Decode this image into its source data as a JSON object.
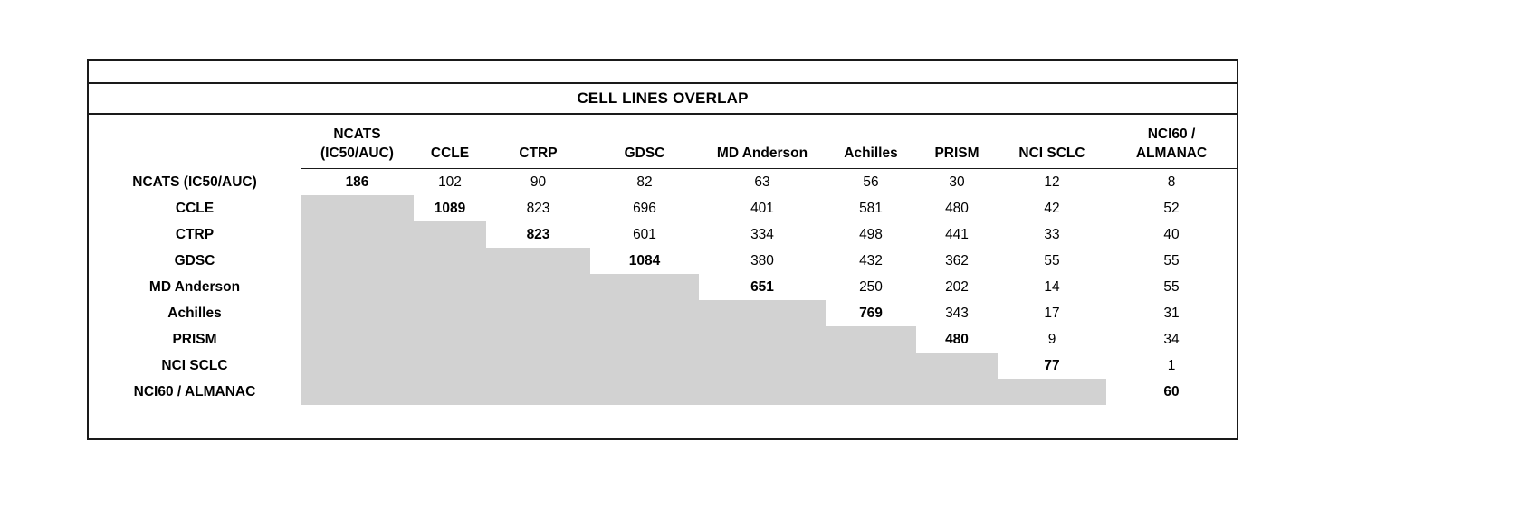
{
  "title": "CELL LINES OVERLAP",
  "colors": {
    "shaded_cell": "#d2d2d2",
    "border": "#1a1a1a",
    "background": "#ffffff"
  },
  "table": {
    "col_headers": [
      [
        "NCATS",
        "(IC50/AUC)"
      ],
      [
        "CCLE"
      ],
      [
        "CTRP"
      ],
      [
        "GDSC"
      ],
      [
        "MD Anderson"
      ],
      [
        "Achilles"
      ],
      [
        "PRISM"
      ],
      [
        "NCI SCLC"
      ],
      [
        "NCI60 /",
        "ALMANAC"
      ]
    ],
    "rows": [
      {
        "label": "NCATS (IC50/AUC)",
        "values": [
          186,
          102,
          90,
          82,
          63,
          56,
          30,
          12,
          8
        ]
      },
      {
        "label": "CCLE",
        "values": [
          null,
          1089,
          823,
          696,
          401,
          581,
          480,
          42,
          52
        ]
      },
      {
        "label": "CTRP",
        "values": [
          null,
          null,
          823,
          601,
          334,
          498,
          441,
          33,
          40
        ]
      },
      {
        "label": "GDSC",
        "values": [
          null,
          null,
          null,
          1084,
          380,
          432,
          362,
          55,
          55
        ]
      },
      {
        "label": "MD Anderson",
        "values": [
          null,
          null,
          null,
          null,
          651,
          250,
          202,
          14,
          55
        ]
      },
      {
        "label": "Achilles",
        "values": [
          null,
          null,
          null,
          null,
          null,
          769,
          343,
          17,
          31
        ]
      },
      {
        "label": "PRISM",
        "values": [
          null,
          null,
          null,
          null,
          null,
          null,
          480,
          9,
          34
        ]
      },
      {
        "label": "NCI SCLC",
        "values": [
          null,
          null,
          null,
          null,
          null,
          null,
          null,
          77,
          1
        ]
      },
      {
        "label": "NCI60 / ALMANAC",
        "values": [
          null,
          null,
          null,
          null,
          null,
          null,
          null,
          null,
          60
        ]
      }
    ]
  },
  "chart_data": {
    "type": "table",
    "title": "CELL LINES OVERLAP",
    "categories": [
      "NCATS (IC50/AUC)",
      "CCLE",
      "CTRP",
      "GDSC",
      "MD Anderson",
      "Achilles",
      "PRISM",
      "NCI SCLC",
      "NCI60 / ALMANAC"
    ],
    "matrix": [
      [
        186,
        102,
        90,
        82,
        63,
        56,
        30,
        12,
        8
      ],
      [
        null,
        1089,
        823,
        696,
        401,
        581,
        480,
        42,
        52
      ],
      [
        null,
        null,
        823,
        601,
        334,
        498,
        441,
        33,
        40
      ],
      [
        null,
        null,
        null,
        1084,
        380,
        432,
        362,
        55,
        55
      ],
      [
        null,
        null,
        null,
        null,
        651,
        250,
        202,
        14,
        55
      ],
      [
        null,
        null,
        null,
        null,
        null,
        769,
        343,
        17,
        31
      ],
      [
        null,
        null,
        null,
        null,
        null,
        null,
        480,
        9,
        34
      ],
      [
        null,
        null,
        null,
        null,
        null,
        null,
        null,
        77,
        1
      ],
      [
        null,
        null,
        null,
        null,
        null,
        null,
        null,
        null,
        60
      ]
    ],
    "notes": "Upper-triangular overlap matrix; diagonal values bold; lower triangle shaded gray (no value)."
  }
}
